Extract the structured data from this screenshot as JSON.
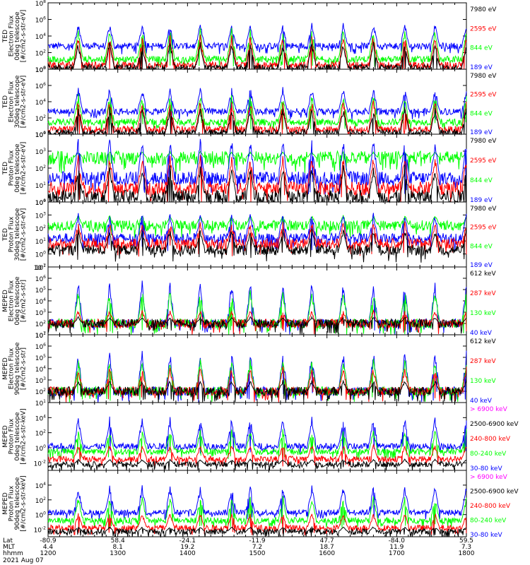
{
  "chart_data": {
    "type": "line",
    "x_axis": {
      "rows": [
        {
          "label": "Lat",
          "values": [
            "-80.9",
            "58.4",
            "-24.1",
            "-11.9",
            "47.7",
            "-84.0",
            "59.5"
          ]
        },
        {
          "label": "MLT",
          "values": [
            "4.4",
            "8.1",
            "19.2",
            "7.2",
            "18.7",
            "11.9",
            "7.3"
          ]
        },
        {
          "label": "hhmm",
          "values": [
            "1200",
            "1300",
            "1400",
            "1500",
            "1600",
            "1700",
            "1800"
          ]
        }
      ],
      "date": "2021 Aug 07",
      "time_range": [
        1200,
        1800
      ]
    },
    "panels": [
      {
        "ylabel": [
          "TED",
          "Electron Flux",
          "0deg telescope",
          "[#/cm2-s-str-eV]"
        ],
        "yscale": "log",
        "ylim_exp": [
          0,
          8
        ],
        "tick_exps": [
          0,
          2,
          4,
          6,
          8
        ],
        "legend": [
          {
            "name": "7980 eV",
            "color": "#000000"
          },
          {
            "name": "2595 eV",
            "color": "#ff0000"
          },
          {
            "name": "844 eV",
            "color": "#00ff00"
          },
          {
            "name": "189 eV",
            "color": "#0000ff"
          }
        ],
        "series_levels": [
          {
            "name": "189 eV",
            "baseline": 2.8,
            "peak": 5.6
          },
          {
            "name": "844 eV",
            "baseline": 1.2,
            "peak": 5.0
          },
          {
            "name": "2595 eV",
            "baseline": 0.5,
            "peak": 4.2
          },
          {
            "name": "7980 eV",
            "baseline": 0.2,
            "peak": 3.3
          }
        ]
      },
      {
        "ylabel": [
          "TED",
          "Electron Flux",
          "30deg telescope",
          "[#/cm2-s-str-eV]"
        ],
        "yscale": "log",
        "ylim_exp": [
          0,
          8
        ],
        "tick_exps": [
          0,
          2,
          4,
          6,
          8
        ],
        "legend": [
          {
            "name": "7980 eV",
            "color": "#000000"
          },
          {
            "name": "2595 eV",
            "color": "#ff0000"
          },
          {
            "name": "844 eV",
            "color": "#00ff00"
          },
          {
            "name": "189 eV",
            "color": "#0000ff"
          }
        ],
        "series_levels": [
          {
            "name": "189 eV",
            "baseline": 2.8,
            "peak": 5.8
          },
          {
            "name": "844 eV",
            "baseline": 1.5,
            "peak": 5.0
          },
          {
            "name": "2595 eV",
            "baseline": 0.6,
            "peak": 4.3
          },
          {
            "name": "7980 eV",
            "baseline": 0.2,
            "peak": 3.4
          }
        ]
      },
      {
        "ylabel": [
          "TED",
          "Proton Flux",
          "0deg telescope",
          "[#/cm2-s-str-eV]"
        ],
        "yscale": "log",
        "ylim_exp": [
          0,
          4
        ],
        "tick_exps": [
          0,
          1,
          2,
          3,
          4
        ],
        "legend": [
          {
            "name": "7980 eV",
            "color": "#000000"
          },
          {
            "name": "2595 eV",
            "color": "#ff0000"
          },
          {
            "name": "844 eV",
            "color": "#00ff00"
          },
          {
            "name": "189 eV",
            "color": "#0000ff"
          }
        ],
        "series_levels": [
          {
            "name": "844 eV",
            "baseline": 2.6,
            "peak": 3.0
          },
          {
            "name": "189 eV",
            "baseline": 1.4,
            "peak": 3.8
          },
          {
            "name": "2595 eV",
            "baseline": 0.8,
            "peak": 2.8
          },
          {
            "name": "7980 eV",
            "baseline": 0.3,
            "peak": 2.2
          }
        ]
      },
      {
        "ylabel": [
          "TED",
          "Proton Flux",
          "30deg telescope",
          "[#/cm2-s-str-eV]"
        ],
        "yscale": "log",
        "ylim_exp": [
          -1,
          4
        ],
        "tick_exps": [
          -1,
          0,
          1,
          2,
          3,
          4
        ],
        "legend": [
          {
            "name": "7980 eV",
            "color": "#000000"
          },
          {
            "name": "2595 eV",
            "color": "#ff0000"
          },
          {
            "name": "844 eV",
            "color": "#00ff00"
          },
          {
            "name": "189 eV",
            "color": "#0000ff"
          }
        ],
        "series_levels": [
          {
            "name": "844 eV",
            "baseline": 2.2,
            "peak": 3.0
          },
          {
            "name": "189 eV",
            "baseline": 1.2,
            "peak": 3.2
          },
          {
            "name": "2595 eV",
            "baseline": 0.8,
            "peak": 2.5
          },
          {
            "name": "7980 eV",
            "baseline": 0.3,
            "peak": 2.0
          }
        ]
      },
      {
        "ylabel": [
          "MEPED",
          "Electron Flux",
          "0deg telescope",
          "[#/cm2-s-str]"
        ],
        "yscale": "log",
        "ylim_exp": [
          1,
          7
        ],
        "tick_exps": [
          1,
          2,
          3,
          4,
          5,
          6,
          7
        ],
        "legend": [
          {
            "name": "612 keV",
            "color": "#000000"
          },
          {
            "name": "287 keV",
            "color": "#ff0000"
          },
          {
            "name": "130 keV",
            "color": "#00ff00"
          },
          {
            "name": "40 keV",
            "color": "#0000ff"
          }
        ],
        "series_levels": [
          {
            "name": "40 keV",
            "baseline": 2.0,
            "peak": 5.8
          },
          {
            "name": "130 keV",
            "baseline": 2.0,
            "peak": 5.0
          },
          {
            "name": "287 keV",
            "baseline": 2.0,
            "peak": 3.2
          },
          {
            "name": "612 keV",
            "baseline": 2.0,
            "peak": 2.6
          }
        ]
      },
      {
        "ylabel": [
          "MEPED",
          "Electron Flux",
          "90deg telescope",
          "[#/cm2-s-str]"
        ],
        "yscale": "log",
        "ylim_exp": [
          1,
          7
        ],
        "tick_exps": [
          1,
          2,
          3,
          4,
          5,
          6,
          7
        ],
        "legend": [
          {
            "name": "612 keV",
            "color": "#000000"
          },
          {
            "name": "287 keV",
            "color": "#ff0000"
          },
          {
            "name": "130 keV",
            "color": "#00ff00"
          },
          {
            "name": "40 keV",
            "color": "#0000ff"
          }
        ],
        "series_levels": [
          {
            "name": "40 keV",
            "baseline": 2.0,
            "peak": 5.6
          },
          {
            "name": "130 keV",
            "baseline": 2.0,
            "peak": 5.0
          },
          {
            "name": "287 keV",
            "baseline": 2.0,
            "peak": 4.2
          },
          {
            "name": "612 keV",
            "baseline": 2.0,
            "peak": 3.0
          }
        ]
      },
      {
        "ylabel": [
          "MEPED",
          "Proton Flux",
          "0deg telescope",
          "[#/cm2-s-str-keV]"
        ],
        "yscale": "log",
        "ylim_exp": [
          -3,
          6
        ],
        "tick_exps": [
          -2,
          0,
          2,
          4
        ],
        "legend": [
          {
            "name": "> 6900 keV",
            "color": "#ff00ff"
          },
          {
            "name": "2500-6900 keV",
            "color": "#000000"
          },
          {
            "name": "240-800 keV",
            "color": "#ff0000"
          },
          {
            "name": "80-240 keV",
            "color": "#00ff00"
          },
          {
            "name": "30-80 keV",
            "color": "#0000ff"
          }
        ],
        "series_levels": [
          {
            "name": "30-80 keV",
            "baseline": 0.2,
            "peak": 4.2
          },
          {
            "name": "80-240 keV",
            "baseline": -0.5,
            "peak": 2.5
          },
          {
            "name": "240-800 keV",
            "baseline": -1.5,
            "peak": 0.5
          },
          {
            "name": "2500-6900 keV",
            "baseline": -2.2,
            "peak": -1.5
          }
        ]
      },
      {
        "ylabel": [
          "MEPED",
          "Proton Flux",
          "90deg telescope",
          "[#/cm2-s-str-keV]"
        ],
        "yscale": "log",
        "ylim_exp": [
          -3,
          6
        ],
        "tick_exps": [
          -2,
          0,
          2,
          4
        ],
        "legend": [
          {
            "name": "> 6900 keV",
            "color": "#ff00ff"
          },
          {
            "name": "2500-6900 keV",
            "color": "#000000"
          },
          {
            "name": "240-800 keV",
            "color": "#ff0000"
          },
          {
            "name": "80-240 keV",
            "color": "#00ff00"
          },
          {
            "name": "30-80 keV",
            "color": "#0000ff"
          }
        ],
        "series_levels": [
          {
            "name": "30-80 keV",
            "baseline": 0.3,
            "peak": 4.0
          },
          {
            "name": "80-240 keV",
            "baseline": -0.8,
            "peak": 2.6
          },
          {
            "name": "240-800 keV",
            "baseline": -1.8,
            "peak": 0.3
          },
          {
            "name": "2500-6900 keV",
            "baseline": -2.3,
            "peak": -1.6
          }
        ]
      }
    ],
    "pass_times_hhmm": [
      1226,
      1253,
      1321,
      1345,
      1411,
      1438,
      1454,
      1522,
      1547,
      1614,
      1640,
      1707,
      1733,
      1800
    ]
  }
}
